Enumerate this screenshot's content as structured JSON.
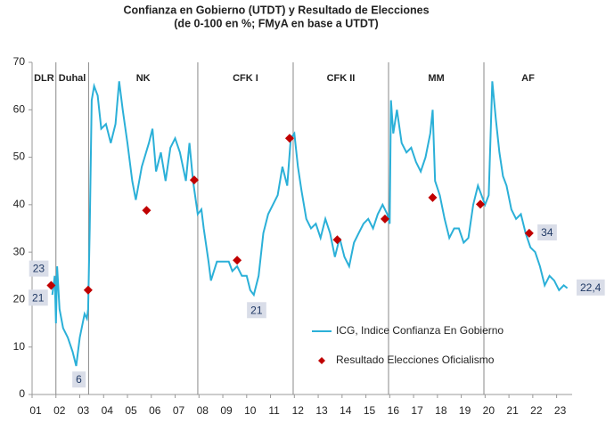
{
  "chart_data": {
    "type": "line",
    "title": "Confianza en Gobierno (UTDT)  y Resultado de Elecciones",
    "subtitle": "(de 0-100  en %;  FMyA  en base a UTDT)",
    "xlim": [
      2001,
      2023.65
    ],
    "xticks": [
      {
        "value": 2001,
        "label": "01"
      },
      {
        "value": 2002,
        "label": "02"
      },
      {
        "value": 2003,
        "label": "03"
      },
      {
        "value": 2004,
        "label": "04"
      },
      {
        "value": 2005,
        "label": "05"
      },
      {
        "value": 2006,
        "label": "06"
      },
      {
        "value": 2007,
        "label": "07"
      },
      {
        "value": 2008,
        "label": "08"
      },
      {
        "value": 2009,
        "label": "09"
      },
      {
        "value": 2010,
        "label": "10"
      },
      {
        "value": 2011,
        "label": "11"
      },
      {
        "value": 2012,
        "label": "12"
      },
      {
        "value": 2013,
        "label": "13"
      },
      {
        "value": 2014,
        "label": "14"
      },
      {
        "value": 2015,
        "label": "15"
      },
      {
        "value": 2016,
        "label": "16"
      },
      {
        "value": 2017,
        "label": "17"
      },
      {
        "value": 2018,
        "label": "18"
      },
      {
        "value": 2019,
        "label": "19"
      },
      {
        "value": 2020,
        "label": "20"
      },
      {
        "value": 2021,
        "label": "21"
      },
      {
        "value": 2022,
        "label": "22"
      },
      {
        "value": 2023,
        "label": "23"
      }
    ],
    "ylim": [
      0,
      70
    ],
    "yticks": [
      0,
      10,
      20,
      30,
      40,
      50,
      60,
      70
    ],
    "periods": [
      "DLR",
      "Duhal",
      "NK",
      "CFK I",
      "CFK  II",
      "MM",
      "AF"
    ],
    "dividers": [
      2002.0,
      2003.37,
      2007.95,
      2011.95,
      2015.95,
      2019.95
    ],
    "legend": "lower right",
    "series": [
      {
        "name": "ICG, Indice Confianza En Gobierno",
        "color": "#2bb0d8",
        "style": "line",
        "x": [
          2001.85,
          2001.95,
          2002.0,
          2002.05,
          2002.15,
          2002.3,
          2002.5,
          2002.7,
          2002.85,
          2003.0,
          2003.2,
          2003.3,
          2003.35,
          2003.42,
          2003.5,
          2003.6,
          2003.75,
          2003.9,
          2004.1,
          2004.3,
          2004.5,
          2004.65,
          2004.8,
          2005.0,
          2005.2,
          2005.35,
          2005.6,
          2005.9,
          2006.05,
          2006.2,
          2006.4,
          2006.6,
          2006.8,
          2007.0,
          2007.2,
          2007.45,
          2007.6,
          2007.75,
          2007.95,
          2008.1,
          2008.2,
          2008.4,
          2008.5,
          2008.75,
          2009.0,
          2009.25,
          2009.4,
          2009.6,
          2009.8,
          2010.0,
          2010.15,
          2010.3,
          2010.5,
          2010.7,
          2010.9,
          2011.1,
          2011.3,
          2011.5,
          2011.7,
          2011.85,
          2012.0,
          2012.15,
          2012.3,
          2012.5,
          2012.7,
          2012.9,
          2013.1,
          2013.3,
          2013.5,
          2013.7,
          2013.9,
          2014.1,
          2014.3,
          2014.5,
          2014.7,
          2014.9,
          2015.1,
          2015.3,
          2015.5,
          2015.7,
          2015.9,
          2016.0,
          2016.05,
          2016.15,
          2016.3,
          2016.5,
          2016.7,
          2016.9,
          2017.1,
          2017.3,
          2017.5,
          2017.7,
          2017.8,
          2017.9,
          2018.1,
          2018.3,
          2018.5,
          2018.7,
          2018.9,
          2019.1,
          2019.3,
          2019.5,
          2019.7,
          2019.85,
          2020.0,
          2020.15,
          2020.3,
          2020.45,
          2020.6,
          2020.75,
          2020.9,
          2021.1,
          2021.3,
          2021.5,
          2021.7,
          2021.9,
          2022.1,
          2022.3,
          2022.5,
          2022.7,
          2022.9,
          2023.1,
          2023.3,
          2023.45
        ],
        "values": [
          21,
          25,
          15,
          27,
          18,
          14,
          12,
          9,
          6,
          12,
          17,
          16,
          18,
          35,
          62,
          65,
          63,
          56,
          57,
          53,
          57,
          66,
          60,
          53,
          45,
          41,
          48,
          53,
          56,
          47,
          51,
          45,
          52,
          54,
          51,
          45,
          53,
          45,
          38,
          39,
          35,
          28,
          24,
          28,
          28,
          28,
          26,
          27,
          25,
          25,
          22,
          21,
          25,
          34,
          38,
          40,
          42,
          48,
          44,
          54,
          55,
          48,
          43,
          37,
          35,
          36,
          33,
          37,
          34,
          29,
          33,
          29,
          27,
          32,
          34,
          36,
          37,
          35,
          38,
          40,
          38,
          36,
          62,
          55,
          60,
          53,
          51,
          52,
          49,
          47,
          50,
          55,
          60,
          45,
          42,
          37,
          33,
          35,
          35,
          32,
          33,
          40,
          44,
          42,
          40,
          42,
          66,
          58,
          51,
          46,
          44,
          39,
          37,
          38,
          34,
          31,
          30,
          27,
          23,
          25,
          24,
          22,
          23,
          22.4
        ],
        "value_labels": [
          "21",
          null,
          null,
          null,
          null,
          null,
          null,
          null,
          "6",
          null,
          null,
          null,
          null,
          null,
          null,
          null,
          null,
          null,
          null,
          null,
          null,
          null,
          null,
          null,
          null,
          null,
          null,
          null,
          null,
          null,
          null,
          null,
          null,
          null,
          null,
          null,
          null,
          null,
          null,
          null,
          null,
          null,
          null,
          null,
          null,
          null,
          null,
          null,
          null,
          null,
          null,
          "21",
          null,
          null,
          null,
          null,
          null,
          null,
          null,
          null,
          null,
          null,
          null,
          null,
          null,
          null,
          null,
          null,
          null,
          null,
          null,
          null,
          null,
          null,
          null,
          null,
          null,
          null,
          null,
          null,
          null,
          null,
          null,
          null,
          null,
          null,
          null,
          null,
          null,
          null,
          null,
          null,
          null,
          null,
          null,
          null,
          null,
          null,
          null,
          null,
          null,
          null,
          null,
          null,
          null,
          null,
          null,
          null,
          null,
          null,
          null,
          null,
          null,
          null,
          null,
          null,
          null,
          null,
          null,
          null,
          null,
          null,
          null,
          "22,4"
        ]
      },
      {
        "name": "Resultado Elecciones Oficialismo",
        "color": "#c00000",
        "style": "points",
        "x": [
          2001.8,
          2003.35,
          2005.8,
          2007.8,
          2009.6,
          2011.8,
          2013.8,
          2015.8,
          2017.8,
          2019.8,
          2021.85
        ],
        "values": [
          23,
          22,
          38.8,
          45.2,
          28.3,
          54,
          32.6,
          37,
          41.5,
          40.1,
          34
        ],
        "value_labels": [
          "23",
          null,
          null,
          null,
          null,
          null,
          null,
          null,
          null,
          null,
          "34"
        ]
      }
    ]
  }
}
